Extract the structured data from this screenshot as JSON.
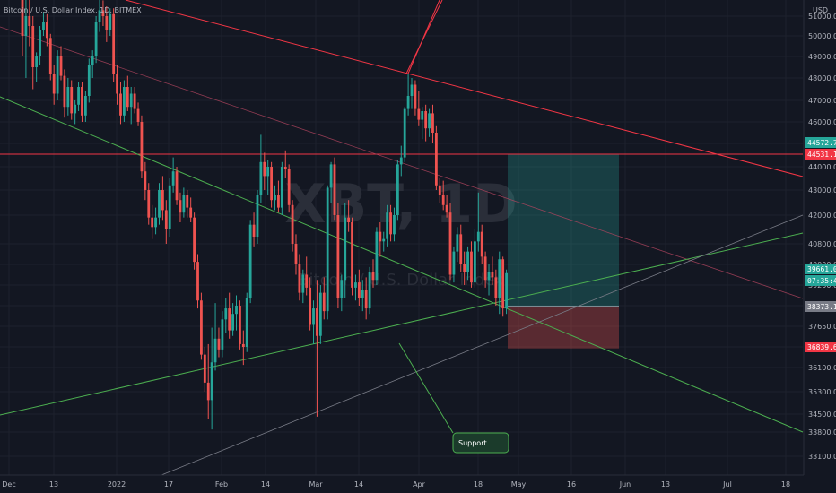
{
  "chart_data": {
    "type": "candlestick",
    "title": "Bitcoin / U.S. Dollar Index, 1D, BITMEX",
    "watermark_symbol": "XBT, 1D",
    "watermark_name": "Bitcoin / U.S. Dollar Index",
    "currency": "USD",
    "y_ticks": [
      33100,
      33800,
      34500,
      35300,
      36100,
      36900,
      37650,
      38400,
      39200,
      40000,
      40800,
      42000,
      43000,
      44000,
      45000,
      46000,
      47000,
      48000,
      49000,
      50000,
      51000
    ],
    "y_tick_labels": [
      "33100.00",
      "33800.00",
      "34500.00",
      "35300.00",
      "36100.00",
      "36900.00",
      "37650.00",
      "38400.00",
      "39200.00",
      "40000.00",
      "40800.00",
      "42000.00",
      "43000.00",
      "44000.00",
      "45000.00",
      "46000.00",
      "47000.00",
      "48000.00",
      "49000.00",
      "50000.00",
      "51000.00"
    ],
    "x_ticks": [
      "Dec",
      "13",
      "2022",
      "17",
      "Feb",
      "14",
      "Mar",
      "14",
      "Apr",
      "18",
      "May",
      "16",
      "Jun",
      "13",
      "Jul",
      "18"
    ],
    "price_badges": [
      {
        "label": "44572.74",
        "color": "#26a69a"
      },
      {
        "label": "44531.14",
        "color": "#f23645"
      },
      {
        "label": "39661.07",
        "color": "#26a69a"
      },
      {
        "label": "07:35:40",
        "color": "#26a69a"
      },
      {
        "label": "38373.13",
        "color": "#787b86"
      },
      {
        "label": "36839.66",
        "color": "#f23645"
      }
    ],
    "position": {
      "target": 44531.14,
      "entry": 38373.13,
      "stop": 36839.66
    },
    "annotation": "Support",
    "colors": {
      "up": "#26a69a",
      "down": "#ef5350",
      "background": "#131722",
      "grid": "#1e222d",
      "support": "#4caf50",
      "resistance": "#f23645"
    },
    "candles": [
      {
        "o": 55000,
        "h": 56500,
        "l": 49000,
        "c": 50000
      },
      {
        "o": 50000,
        "h": 52000,
        "l": 48000,
        "c": 51000
      },
      {
        "o": 51000,
        "h": 51900,
        "l": 49500,
        "c": 50500
      },
      {
        "o": 50500,
        "h": 51000,
        "l": 47500,
        "c": 48500
      },
      {
        "o": 48500,
        "h": 49200,
        "l": 47800,
        "c": 49000
      },
      {
        "o": 49000,
        "h": 50500,
        "l": 48600,
        "c": 50300
      },
      {
        "o": 50300,
        "h": 51200,
        "l": 50000,
        "c": 50700
      },
      {
        "o": 50700,
        "h": 51100,
        "l": 49500,
        "c": 49900
      },
      {
        "o": 49900,
        "h": 50100,
        "l": 47900,
        "c": 48200
      },
      {
        "o": 48200,
        "h": 48600,
        "l": 46800,
        "c": 47300
      },
      {
        "o": 47300,
        "h": 49300,
        "l": 47000,
        "c": 49000
      },
      {
        "o": 49000,
        "h": 49500,
        "l": 47900,
        "c": 48100
      },
      {
        "o": 48100,
        "h": 48400,
        "l": 46200,
        "c": 46700
      },
      {
        "o": 46700,
        "h": 48000,
        "l": 46300,
        "c": 47600
      },
      {
        "o": 47600,
        "h": 47900,
        "l": 46100,
        "c": 46400
      },
      {
        "o": 46400,
        "h": 47000,
        "l": 45900,
        "c": 46800
      },
      {
        "o": 46800,
        "h": 47800,
        "l": 46500,
        "c": 47600
      },
      {
        "o": 47600,
        "h": 47800,
        "l": 46000,
        "c": 46300
      },
      {
        "o": 46300,
        "h": 47400,
        "l": 46000,
        "c": 47200
      },
      {
        "o": 47200,
        "h": 48900,
        "l": 46900,
        "c": 48600
      },
      {
        "o": 48600,
        "h": 49300,
        "l": 48000,
        "c": 49000
      },
      {
        "o": 49000,
        "h": 51000,
        "l": 48700,
        "c": 50700
      },
      {
        "o": 50700,
        "h": 51900,
        "l": 50200,
        "c": 51300
      },
      {
        "o": 51300,
        "h": 51800,
        "l": 50500,
        "c": 51000
      },
      {
        "o": 51000,
        "h": 51500,
        "l": 49700,
        "c": 50300
      },
      {
        "o": 50300,
        "h": 51400,
        "l": 50000,
        "c": 51100
      },
      {
        "o": 51100,
        "h": 51400,
        "l": 47800,
        "c": 48200
      },
      {
        "o": 48200,
        "h": 48600,
        "l": 46800,
        "c": 47300
      },
      {
        "o": 47300,
        "h": 47800,
        "l": 45900,
        "c": 46300
      },
      {
        "o": 46300,
        "h": 47900,
        "l": 46000,
        "c": 47600
      },
      {
        "o": 47600,
        "h": 48100,
        "l": 46500,
        "c": 46700
      },
      {
        "o": 46700,
        "h": 47600,
        "l": 45900,
        "c": 47300
      },
      {
        "o": 47300,
        "h": 47600,
        "l": 46400,
        "c": 46600
      },
      {
        "o": 46600,
        "h": 46900,
        "l": 45800,
        "c": 46000
      },
      {
        "o": 46000,
        "h": 46300,
        "l": 43500,
        "c": 43800
      },
      {
        "o": 43800,
        "h": 44200,
        "l": 42600,
        "c": 43000
      },
      {
        "o": 43000,
        "h": 43300,
        "l": 41600,
        "c": 41900
      },
      {
        "o": 41900,
        "h": 42400,
        "l": 41000,
        "c": 41500
      },
      {
        "o": 41500,
        "h": 42300,
        "l": 41200,
        "c": 41900
      },
      {
        "o": 41900,
        "h": 43300,
        "l": 41600,
        "c": 43000
      },
      {
        "o": 43000,
        "h": 43600,
        "l": 41800,
        "c": 42200
      },
      {
        "o": 42200,
        "h": 42600,
        "l": 40800,
        "c": 41400
      },
      {
        "o": 41400,
        "h": 43500,
        "l": 41100,
        "c": 43200
      },
      {
        "o": 43200,
        "h": 44400,
        "l": 42900,
        "c": 43800
      },
      {
        "o": 43800,
        "h": 44000,
        "l": 42400,
        "c": 42600
      },
      {
        "o": 42600,
        "h": 42900,
        "l": 41700,
        "c": 42100
      },
      {
        "o": 42100,
        "h": 43100,
        "l": 41900,
        "c": 42800
      },
      {
        "o": 42800,
        "h": 43000,
        "l": 41900,
        "c": 42300
      },
      {
        "o": 42300,
        "h": 42700,
        "l": 41700,
        "c": 41900
      },
      {
        "o": 41900,
        "h": 42100,
        "l": 39800,
        "c": 40100
      },
      {
        "o": 40100,
        "h": 40400,
        "l": 38300,
        "c": 38600
      },
      {
        "o": 38600,
        "h": 38900,
        "l": 36400,
        "c": 36600
      },
      {
        "o": 36600,
        "h": 36900,
        "l": 35300,
        "c": 35600
      },
      {
        "o": 35600,
        "h": 37000,
        "l": 34300,
        "c": 35000
      },
      {
        "o": 35000,
        "h": 37600,
        "l": 33900,
        "c": 36300
      },
      {
        "o": 36300,
        "h": 38500,
        "l": 36000,
        "c": 37200
      },
      {
        "o": 37200,
        "h": 37600,
        "l": 36500,
        "c": 36800
      },
      {
        "o": 36800,
        "h": 38200,
        "l": 36500,
        "c": 37900
      },
      {
        "o": 37900,
        "h": 38700,
        "l": 37400,
        "c": 38300
      },
      {
        "o": 38300,
        "h": 38900,
        "l": 37200,
        "c": 37500
      },
      {
        "o": 37500,
        "h": 38500,
        "l": 37300,
        "c": 38100
      },
      {
        "o": 38100,
        "h": 38800,
        "l": 37500,
        "c": 38400
      },
      {
        "o": 38400,
        "h": 38600,
        "l": 36800,
        "c": 37000
      },
      {
        "o": 37000,
        "h": 37500,
        "l": 36200,
        "c": 36900
      },
      {
        "o": 36900,
        "h": 38900,
        "l": 36700,
        "c": 38700
      },
      {
        "o": 38700,
        "h": 41800,
        "l": 38500,
        "c": 41600
      },
      {
        "o": 41600,
        "h": 42100,
        "l": 40700,
        "c": 41100
      },
      {
        "o": 41100,
        "h": 43000,
        "l": 40800,
        "c": 42800
      },
      {
        "o": 42800,
        "h": 45400,
        "l": 42500,
        "c": 44200
      },
      {
        "o": 44200,
        "h": 44600,
        "l": 43000,
        "c": 43600
      },
      {
        "o": 43600,
        "h": 44300,
        "l": 42800,
        "c": 44000
      },
      {
        "o": 44000,
        "h": 44200,
        "l": 42300,
        "c": 42600
      },
      {
        "o": 42600,
        "h": 43200,
        "l": 42200,
        "c": 42800
      },
      {
        "o": 42800,
        "h": 43400,
        "l": 42100,
        "c": 42300
      },
      {
        "o": 42300,
        "h": 44200,
        "l": 42000,
        "c": 44000
      },
      {
        "o": 44000,
        "h": 44700,
        "l": 43500,
        "c": 43900
      },
      {
        "o": 43900,
        "h": 44100,
        "l": 42100,
        "c": 42400
      },
      {
        "o": 42400,
        "h": 42600,
        "l": 40500,
        "c": 40800
      },
      {
        "o": 40800,
        "h": 41200,
        "l": 39600,
        "c": 40000
      },
      {
        "o": 40000,
        "h": 40400,
        "l": 38600,
        "c": 38900
      },
      {
        "o": 38900,
        "h": 39800,
        "l": 38500,
        "c": 39600
      },
      {
        "o": 39600,
        "h": 40300,
        "l": 38800,
        "c": 39100
      },
      {
        "o": 39100,
        "h": 39500,
        "l": 37500,
        "c": 37700
      },
      {
        "o": 37700,
        "h": 38600,
        "l": 37000,
        "c": 38300
      },
      {
        "o": 38300,
        "h": 39400,
        "l": 34400,
        "c": 37300
      },
      {
        "o": 37300,
        "h": 39200,
        "l": 37000,
        "c": 38900
      },
      {
        "o": 38900,
        "h": 39500,
        "l": 37900,
        "c": 38200
      },
      {
        "o": 38200,
        "h": 43200,
        "l": 37900,
        "c": 43100
      },
      {
        "o": 43100,
        "h": 44200,
        "l": 42500,
        "c": 44100
      },
      {
        "o": 44100,
        "h": 44400,
        "l": 41800,
        "c": 42000
      },
      {
        "o": 42000,
        "h": 42500,
        "l": 38300,
        "c": 38700
      },
      {
        "o": 38700,
        "h": 39600,
        "l": 38200,
        "c": 39400
      },
      {
        "o": 39400,
        "h": 42500,
        "l": 38700,
        "c": 41900
      },
      {
        "o": 41900,
        "h": 42600,
        "l": 41300,
        "c": 41700
      },
      {
        "o": 41700,
        "h": 41900,
        "l": 38800,
        "c": 39100
      },
      {
        "o": 39100,
        "h": 39600,
        "l": 38600,
        "c": 39300
      },
      {
        "o": 39300,
        "h": 39800,
        "l": 38400,
        "c": 38700
      },
      {
        "o": 38700,
        "h": 39400,
        "l": 38200,
        "c": 39000
      },
      {
        "o": 39000,
        "h": 39500,
        "l": 37900,
        "c": 38300
      },
      {
        "o": 38300,
        "h": 39900,
        "l": 38100,
        "c": 39700
      },
      {
        "o": 39700,
        "h": 40200,
        "l": 39100,
        "c": 39400
      },
      {
        "o": 39400,
        "h": 41500,
        "l": 39200,
        "c": 41300
      },
      {
        "o": 41300,
        "h": 41700,
        "l": 40300,
        "c": 40900
      },
      {
        "o": 40900,
        "h": 41300,
        "l": 40500,
        "c": 41000
      },
      {
        "o": 41000,
        "h": 42400,
        "l": 40700,
        "c": 42100
      },
      {
        "o": 42100,
        "h": 42400,
        "l": 40900,
        "c": 41200
      },
      {
        "o": 41200,
        "h": 42300,
        "l": 40900,
        "c": 42000
      },
      {
        "o": 42000,
        "h": 44300,
        "l": 41800,
        "c": 44100
      },
      {
        "o": 44100,
        "h": 44900,
        "l": 43600,
        "c": 44400
      },
      {
        "o": 44400,
        "h": 46700,
        "l": 44200,
        "c": 46600
      },
      {
        "o": 46600,
        "h": 48200,
        "l": 46300,
        "c": 47200
      },
      {
        "o": 47200,
        "h": 48000,
        "l": 46600,
        "c": 47700
      },
      {
        "o": 47700,
        "h": 47900,
        "l": 46300,
        "c": 46600
      },
      {
        "o": 46600,
        "h": 47400,
        "l": 45800,
        "c": 46100
      },
      {
        "o": 46100,
        "h": 46700,
        "l": 45200,
        "c": 46500
      },
      {
        "o": 46500,
        "h": 46800,
        "l": 45100,
        "c": 45700
      },
      {
        "o": 45700,
        "h": 46600,
        "l": 45300,
        "c": 46400
      },
      {
        "o": 46400,
        "h": 46800,
        "l": 45000,
        "c": 45500
      },
      {
        "o": 45500,
        "h": 45800,
        "l": 43000,
        "c": 43200
      },
      {
        "o": 43200,
        "h": 43500,
        "l": 42500,
        "c": 42800
      },
      {
        "o": 42800,
        "h": 43400,
        "l": 42200,
        "c": 42400
      },
      {
        "o": 42400,
        "h": 42800,
        "l": 41900,
        "c": 42100
      },
      {
        "o": 42100,
        "h": 42500,
        "l": 39400,
        "c": 39600
      },
      {
        "o": 39600,
        "h": 40700,
        "l": 39300,
        "c": 40500
      },
      {
        "o": 40500,
        "h": 41500,
        "l": 40100,
        "c": 41200
      },
      {
        "o": 41200,
        "h": 41600,
        "l": 39700,
        "c": 40000
      },
      {
        "o": 40000,
        "h": 40500,
        "l": 39200,
        "c": 39700
      },
      {
        "o": 39700,
        "h": 40700,
        "l": 39400,
        "c": 40500
      },
      {
        "o": 40500,
        "h": 40900,
        "l": 39100,
        "c": 39300
      },
      {
        "o": 39300,
        "h": 41400,
        "l": 39100,
        "c": 40900
      },
      {
        "o": 40900,
        "h": 42900,
        "l": 40500,
        "c": 41300
      },
      {
        "o": 41300,
        "h": 41600,
        "l": 40000,
        "c": 40300
      },
      {
        "o": 40300,
        "h": 40500,
        "l": 39100,
        "c": 39400
      },
      {
        "o": 39400,
        "h": 40000,
        "l": 38800,
        "c": 39700
      },
      {
        "o": 39700,
        "h": 40300,
        "l": 39200,
        "c": 39500
      },
      {
        "o": 39500,
        "h": 39800,
        "l": 38400,
        "c": 38700
      },
      {
        "o": 38700,
        "h": 40500,
        "l": 38100,
        "c": 40200
      },
      {
        "o": 40200,
        "h": 40300,
        "l": 38000,
        "c": 38300
      },
      {
        "o": 38300,
        "h": 39800,
        "l": 38100,
        "c": 39661
      }
    ]
  }
}
